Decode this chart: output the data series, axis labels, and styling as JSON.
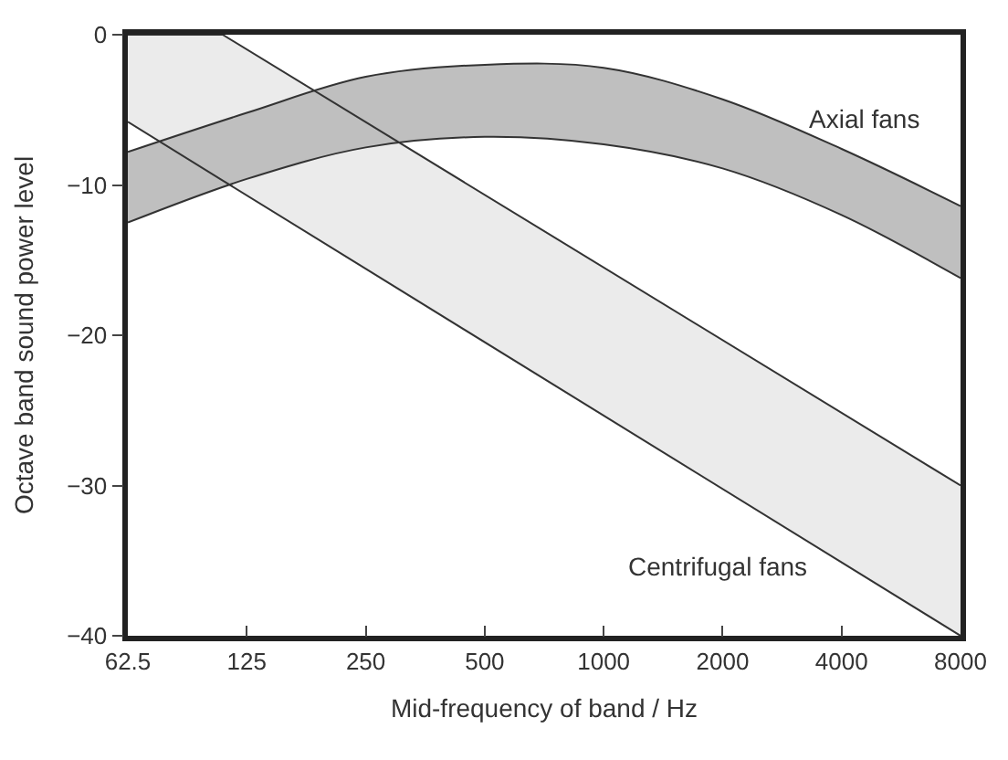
{
  "chart_data": {
    "type": "line",
    "xlabel": "Mid-frequency of band / Hz",
    "ylabel": "Octave band sound power level",
    "series": [
      {
        "color": "#333333",
        "x": [
          62.5,
          108.6,
          8000
        ],
        "values": [
          -5.8,
          -9.7,
          -40
        ]
      },
      {
        "color": "#333333",
        "x": [
          62.5,
          108.6,
          8000
        ],
        "values": [
          0,
          0,
          -30
        ],
        "lower": [
          -5.8,
          -9.7,
          -40
        ],
        "upper": [
          0,
          0,
          -30
        ]
      },
      {
        "color": "#333333",
        "x": [
          62.5,
          125,
          250,
          500,
          1000,
          2000,
          4000,
          8000
        ],
        "values": [
          -12.5,
          -9.6,
          -7.5,
          -6.8,
          -7.3,
          -8.9,
          -12.0,
          -16.2
        ]
      },
      {
        "color": "#333333",
        "x": [
          62.5,
          125,
          250,
          500,
          1000,
          2000,
          4000,
          8000
        ],
        "values": [
          -7.8,
          -5.2,
          -2.8,
          -2.0,
          -2.2,
          -4.3,
          -7.6,
          -11.4
        ],
        "lower": [
          -12.5,
          -9.6,
          -7.5,
          -6.8,
          -7.3,
          -8.9,
          -12.0,
          -16.2
        ],
        "upper": [
          -7.8,
          -5.2,
          -2.8,
          -2.0,
          -2.2,
          -4.3,
          -7.6,
          -11.4
        ]
      }
    ],
    "xlim": [
      62.5,
      8000
    ],
    "ylim": [
      -40,
      0
    ],
    "xticks": [
      62.5,
      125,
      250,
      500,
      1000,
      2000,
      4000,
      8000
    ],
    "yticks": [
      -40,
      -30,
      -20,
      -10,
      0
    ],
    "log": "x",
    "annotations": [
      "Axial fans",
      "Centrifugal fans"
    ]
  }
}
